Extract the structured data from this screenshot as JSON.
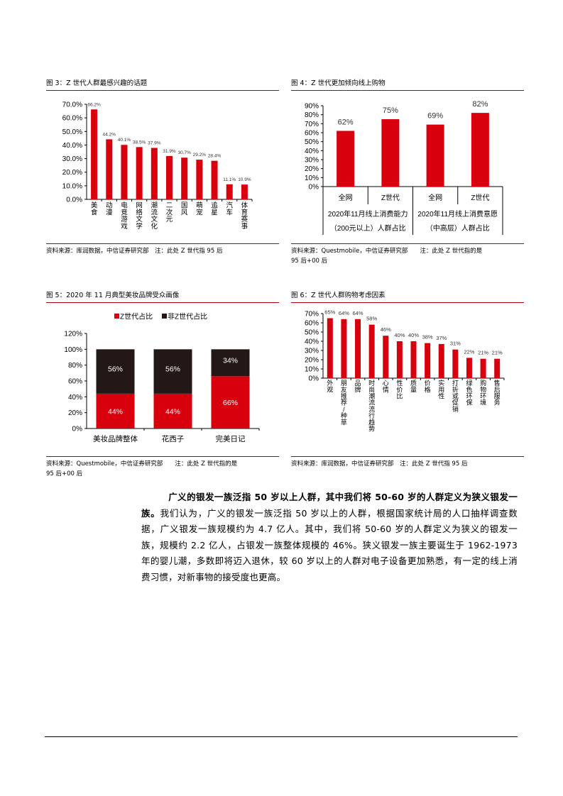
{
  "colors": {
    "accent_red": "#d9000d",
    "dark_bar": "#231815",
    "rule_red": "#b00010",
    "text": "#000000"
  },
  "figures": {
    "fig3": {
      "title": "图 3：Z 世代人群最感兴趣的话题",
      "source": "资料来源：库润数据，中信证券研究部　注：此处 Z 世代指 95 后"
    },
    "fig4": {
      "title": "图 4：Z 世代更加倾向线上购物",
      "source_line1": "资料来源：Questmobile，中信证券研究部　　注：此处 Z 世代指的是",
      "source_line2": "95 后+00 后",
      "group_labels": [
        "2020年11月线上消费能力（200元以上）人群占比",
        "2020年11月线上消费意愿（中高层）人群占比"
      ],
      "group_label_lines": [
        [
          "2020年11月线上消费能力",
          "（200元以上）人群占比"
        ],
        [
          "2020年11月线上消费意愿",
          "（中高层）人群占比"
        ]
      ]
    },
    "fig5": {
      "title": "图 5：2020 年 11 月典型美妆品牌受众画像",
      "source_line1": "资料来源：Questmobile，中信证券研究部　　注：此处 Z 世代指的是",
      "source_line2": "95 后+00 后"
    },
    "fig6": {
      "title": "图 6：Z 世代人群购物考虑因素",
      "source": "资料来源：库润数据，中信证券研究部　注：此处 Z 世代指 95 后"
    }
  },
  "chart_data": [
    {
      "id": "fig3",
      "type": "bar",
      "title": "Z 世代人群最感兴趣的话题",
      "categories": [
        "美食",
        "动漫",
        "电竞游戏",
        "网络文学",
        "潮流文化",
        "二次元",
        "国风",
        "萌宠",
        "追星",
        "汽车",
        "体育赛事"
      ],
      "values": [
        66.2,
        44.2,
        40.1,
        38.5,
        37.9,
        31.9,
        30.7,
        29.2,
        28.4,
        11.1,
        10.9
      ],
      "value_labels": [
        "66.2%",
        "44.2%",
        "40.1%",
        "38.5%",
        "37.9%",
        "31.9%",
        "30.7%",
        "29.2%",
        "28.4%",
        "11.1%",
        "10.9%"
      ],
      "yticks": [
        "0.0%",
        "10.0%",
        "20.0%",
        "30.0%",
        "40.0%",
        "50.0%",
        "60.0%",
        "70.0%"
      ],
      "ylim": [
        0,
        70
      ],
      "xlabel": "",
      "ylabel": "",
      "grid": false
    },
    {
      "id": "fig4",
      "type": "bar",
      "title": "Z 世代更加倾向线上购物",
      "categories": [
        "全网",
        "Z世代",
        "全网",
        "Z世代"
      ],
      "groups": [
        "2020年11月线上消费能力（200元以上）人群占比",
        "2020年11月线上消费意愿（中高层）人群占比"
      ],
      "values": [
        62,
        75,
        69,
        82
      ],
      "value_labels": [
        "62%",
        "75%",
        "69%",
        "82%"
      ],
      "yticks": [
        "0%",
        "10%",
        "20%",
        "30%",
        "40%",
        "50%",
        "60%",
        "70%",
        "80%",
        "90%"
      ],
      "ylim": [
        0,
        90
      ],
      "xlabel": "",
      "ylabel": "",
      "grid": false
    },
    {
      "id": "fig5",
      "type": "bar",
      "stacked": true,
      "title": "2020 年 11 月典型美妆品牌受众画像",
      "categories": [
        "美妆品牌整体",
        "花西子",
        "完美日记"
      ],
      "series": [
        {
          "name": "Z世代占比",
          "values": [
            44,
            44,
            66
          ],
          "labels": [
            "44%",
            "44%",
            "66%"
          ],
          "color": "#d9000d"
        },
        {
          "name": "非Z世代占比",
          "values": [
            56,
            56,
            34
          ],
          "labels": [
            "56%",
            "56%",
            "34%"
          ],
          "color": "#231815"
        }
      ],
      "yticks": [
        "0%",
        "20%",
        "40%",
        "60%",
        "80%",
        "100%",
        "120%"
      ],
      "ylim": [
        0,
        120
      ],
      "legend_position": "top",
      "xlabel": "",
      "ylabel": "",
      "grid": false
    },
    {
      "id": "fig6",
      "type": "bar",
      "title": "Z 世代人群购物考虑因素",
      "categories": [
        "外观",
        "朋友推荐/种草",
        "品牌",
        "时尚潮流流行趋势",
        "心情",
        "性价比",
        "质量",
        "价格",
        "实用性",
        "打折或促销",
        "绿色环保",
        "购物环境",
        "售后服务"
      ],
      "values": [
        65,
        64,
        64,
        58,
        46,
        40,
        40,
        38,
        37,
        31,
        22,
        21,
        21
      ],
      "value_labels": [
        "65%",
        "64%",
        "64%",
        "58%",
        "46%",
        "40%",
        "40%",
        "38%",
        "37%",
        "31%",
        "22%",
        "21%",
        "21%"
      ],
      "yticks": [
        "0%",
        "10%",
        "20%",
        "30%",
        "40%",
        "50%",
        "60%",
        "70%"
      ],
      "ylim": [
        0,
        70
      ],
      "xlabel": "",
      "ylabel": "",
      "grid": false
    }
  ],
  "body_paragraph": {
    "bold_lead_line1": "广义的银发一族泛指 50 岁以上人群，其中我们将 50-60 岁的人群定义为狭义银发一",
    "bold_lead_line2": "族。",
    "text": "我们认为，广义的银发一族泛指 50 岁以上的人群，根据国家统计局的人口抽样调查数据，广义银发一族规模约为 4.7 亿人。其中，我们将 50-60 岁的人群定义为狭义的银发一族，规模约 2.2 亿人，占银发一族整体规模的 46%。狭义银发一族主要诞生于 1962-1973 年的婴儿潮，多数即将迈入退休，较 60 岁以上的人群对电子设备更加熟悉，有一定的线上消费习惯，对新事物的接受度也更高。"
  }
}
